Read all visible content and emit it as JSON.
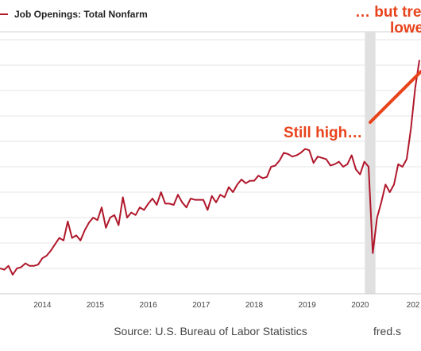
{
  "chart_data": {
    "type": "line",
    "legend": "Job Openings: Total Nonfarm",
    "series_color": "#b0172b",
    "annotation_color": "#e8431b",
    "shading_color": "#e0e0e0",
    "grid": true,
    "x_tick_labels": [
      "2014",
      "2015",
      "2016",
      "2017",
      "2018",
      "2019",
      "2020",
      "202"
    ],
    "x_range": [
      2013.2,
      2021.15
    ],
    "y_range": [
      0,
      10
    ],
    "recession_shading": [
      2020.09,
      2020.29
    ],
    "annotations": [
      "Still high…",
      "… but tre",
      "lowe"
    ],
    "source": "Source: U.S. Bureau of Labor Statistics",
    "site": "fred.s",
    "x": [
      2013.2,
      2013.28,
      2013.36,
      2013.44,
      2013.52,
      2013.6,
      2013.68,
      2013.76,
      2013.84,
      2013.92,
      2014.0,
      2014.08,
      2014.16,
      2014.24,
      2014.32,
      2014.4,
      2014.48,
      2014.56,
      2014.64,
      2014.72,
      2014.8,
      2014.88,
      2014.96,
      2015.04,
      2015.12,
      2015.2,
      2015.28,
      2015.36,
      2015.44,
      2015.52,
      2015.6,
      2015.68,
      2015.76,
      2015.84,
      2015.92,
      2016.0,
      2016.08,
      2016.16,
      2016.24,
      2016.32,
      2016.4,
      2016.48,
      2016.56,
      2016.64,
      2016.72,
      2016.8,
      2016.88,
      2016.96,
      2017.04,
      2017.12,
      2017.2,
      2017.28,
      2017.36,
      2017.44,
      2017.52,
      2017.6,
      2017.68,
      2017.76,
      2017.84,
      2017.92,
      2018.0,
      2018.08,
      2018.16,
      2018.24,
      2018.32,
      2018.4,
      2018.48,
      2018.56,
      2018.64,
      2018.72,
      2018.8,
      2018.88,
      2018.96,
      2019.04,
      2019.12,
      2019.2,
      2019.28,
      2019.36,
      2019.44,
      2019.52,
      2019.6,
      2019.68,
      2019.76,
      2019.84,
      2019.92,
      2020.0,
      2020.08,
      2020.16,
      2020.24,
      2020.32,
      2020.4,
      2020.48,
      2020.56,
      2020.64,
      2020.72,
      2020.8,
      2020.88,
      2020.96,
      2021.04,
      2021.12
    ],
    "y": [
      1.0,
      0.95,
      1.1,
      0.75,
      1.0,
      1.05,
      1.2,
      1.1,
      1.1,
      1.15,
      1.4,
      1.5,
      1.7,
      1.95,
      2.2,
      2.1,
      2.85,
      2.2,
      2.3,
      2.1,
      2.5,
      2.8,
      3.0,
      2.9,
      3.4,
      2.6,
      3.0,
      3.1,
      2.7,
      3.8,
      3.0,
      3.2,
      3.1,
      3.4,
      3.3,
      3.55,
      3.75,
      3.5,
      4.0,
      3.55,
      3.55,
      3.5,
      3.9,
      3.6,
      3.4,
      3.75,
      3.7,
      3.7,
      3.7,
      3.3,
      3.85,
      3.6,
      3.9,
      3.8,
      4.2,
      4.0,
      4.3,
      4.5,
      4.35,
      4.45,
      4.45,
      4.65,
      4.55,
      4.6,
      5.0,
      5.05,
      5.25,
      5.55,
      5.5,
      5.4,
      5.45,
      5.55,
      5.7,
      5.65,
      5.15,
      5.4,
      5.35,
      5.3,
      5.05,
      5.1,
      5.2,
      5.0,
      5.1,
      5.45,
      4.9,
      4.7,
      5.2,
      5.0,
      1.6,
      3.0,
      3.6,
      4.3,
      4.0,
      4.3,
      5.1,
      5.0,
      5.3,
      6.5,
      8.1,
      9.2
    ]
  }
}
